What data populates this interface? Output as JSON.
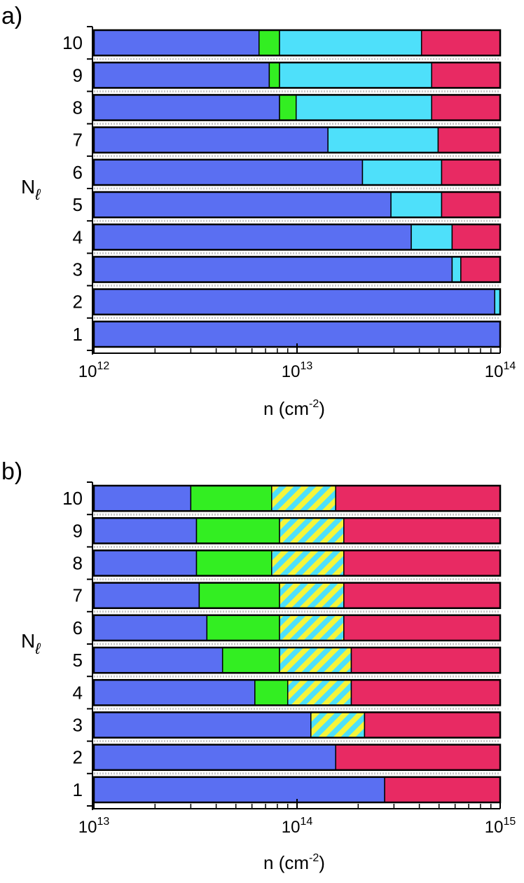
{
  "colors": {
    "blue": "#5a6ff2",
    "green": "#33ee22",
    "cyan": "#4ee0fa",
    "red": "#e82a63",
    "yellow": "#f5f53a",
    "bar_outline": "#000000",
    "separator": "#c8c8c8"
  },
  "chart_data": [
    {
      "panel": "a)",
      "type": "bar",
      "orientation": "horizontal-stacked",
      "xscale": "log",
      "xlim": [
        1000000000000.0,
        100000000000000.0
      ],
      "ylabel": "N",
      "ylabel_sub": "ℓ",
      "xlabel": "n  (cm",
      "xlabel_sup": "-2",
      "xlabel_end": ")",
      "xticks": [
        {
          "base": "10",
          "exp": "12",
          "value": 1000000000000.0
        },
        {
          "base": "10",
          "exp": "13",
          "value": 10000000000000.0
        },
        {
          "base": "10",
          "exp": "14",
          "value": 100000000000000.0
        }
      ],
      "rows": [
        {
          "label": "10",
          "segments": [
            {
              "color": "blue",
              "end": 6500000000000.0
            },
            {
              "color": "green",
              "end": 8200000000000.0
            },
            {
              "color": "cyan",
              "end": 41000000000000.0
            },
            {
              "color": "red",
              "end": 100000000000000.0
            }
          ]
        },
        {
          "label": "9",
          "segments": [
            {
              "color": "blue",
              "end": 7300000000000.0
            },
            {
              "color": "green",
              "end": 8200000000000.0
            },
            {
              "color": "cyan",
              "end": 46000000000000.0
            },
            {
              "color": "red",
              "end": 100000000000000.0
            }
          ]
        },
        {
          "label": "8",
          "segments": [
            {
              "color": "blue",
              "end": 8200000000000.0
            },
            {
              "color": "green",
              "end": 9900000000000.0
            },
            {
              "color": "cyan",
              "end": 46000000000000.0
            },
            {
              "color": "red",
              "end": 100000000000000.0
            }
          ]
        },
        {
          "label": "7",
          "segments": [
            {
              "color": "blue",
              "end": 14200000000000.0
            },
            {
              "color": "cyan",
              "end": 49500000000000.0
            },
            {
              "color": "red",
              "end": 100000000000000.0
            }
          ]
        },
        {
          "label": "6",
          "segments": [
            {
              "color": "blue",
              "end": 21000000000000.0
            },
            {
              "color": "cyan",
              "end": 51500000000000.0
            },
            {
              "color": "red",
              "end": 100000000000000.0
            }
          ]
        },
        {
          "label": "5",
          "segments": [
            {
              "color": "blue",
              "end": 29000000000000.0
            },
            {
              "color": "cyan",
              "end": 51500000000000.0
            },
            {
              "color": "red",
              "end": 100000000000000.0
            }
          ]
        },
        {
          "label": "4",
          "segments": [
            {
              "color": "blue",
              "end": 36500000000000.0
            },
            {
              "color": "cyan",
              "end": 58000000000000.0
            },
            {
              "color": "red",
              "end": 100000000000000.0
            }
          ]
        },
        {
          "label": "3",
          "segments": [
            {
              "color": "blue",
              "end": 58000000000000.0
            },
            {
              "color": "cyan",
              "end": 64000000000000.0
            },
            {
              "color": "red",
              "end": 100000000000000.0
            }
          ]
        },
        {
          "label": "2",
          "segments": [
            {
              "color": "blue",
              "end": 94000000000000.0
            },
            {
              "color": "cyan",
              "end": 100000000000000.0
            }
          ]
        },
        {
          "label": "1",
          "segments": [
            {
              "color": "blue",
              "end": 100000000000000.0
            }
          ]
        }
      ]
    },
    {
      "panel": "b)",
      "type": "bar",
      "orientation": "horizontal-stacked",
      "xscale": "log",
      "xlim": [
        10000000000000.0,
        1000000000000000.0
      ],
      "ylabel": "N",
      "ylabel_sub": "ℓ",
      "xlabel": "n  (cm",
      "xlabel_sup": "-2",
      "xlabel_end": ")",
      "xticks": [
        {
          "base": "10",
          "exp": "13",
          "value": 10000000000000.0
        },
        {
          "base": "10",
          "exp": "14",
          "value": 100000000000000.0
        },
        {
          "base": "10",
          "exp": "15",
          "value": 1000000000000000.0
        }
      ],
      "rows": [
        {
          "label": "10",
          "segments": [
            {
              "color": "blue",
              "end": 30000000000000.0
            },
            {
              "color": "green",
              "end": 75000000000000.0
            },
            {
              "color": "hatch",
              "end": 155000000000000.0
            },
            {
              "color": "red",
              "end": 1000000000000000.0
            }
          ]
        },
        {
          "label": "9",
          "segments": [
            {
              "color": "blue",
              "end": 32000000000000.0
            },
            {
              "color": "green",
              "end": 82000000000000.0
            },
            {
              "color": "hatch",
              "end": 170000000000000.0
            },
            {
              "color": "red",
              "end": 1000000000000000.0
            }
          ]
        },
        {
          "label": "8",
          "segments": [
            {
              "color": "blue",
              "end": 32000000000000.0
            },
            {
              "color": "green",
              "end": 75000000000000.0
            },
            {
              "color": "hatch",
              "end": 170000000000000.0
            },
            {
              "color": "red",
              "end": 1000000000000000.0
            }
          ]
        },
        {
          "label": "7",
          "segments": [
            {
              "color": "blue",
              "end": 33000000000000.0
            },
            {
              "color": "green",
              "end": 82000000000000.0
            },
            {
              "color": "hatch",
              "end": 170000000000000.0
            },
            {
              "color": "red",
              "end": 1000000000000000.0
            }
          ]
        },
        {
          "label": "6",
          "segments": [
            {
              "color": "blue",
              "end": 36000000000000.0
            },
            {
              "color": "green",
              "end": 82000000000000.0
            },
            {
              "color": "hatch",
              "end": 170000000000000.0
            },
            {
              "color": "red",
              "end": 1000000000000000.0
            }
          ]
        },
        {
          "label": "5",
          "segments": [
            {
              "color": "blue",
              "end": 43000000000000.0
            },
            {
              "color": "green",
              "end": 82000000000000.0
            },
            {
              "color": "hatch",
              "end": 185000000000000.0
            },
            {
              "color": "red",
              "end": 1000000000000000.0
            }
          ]
        },
        {
          "label": "4",
          "segments": [
            {
              "color": "blue",
              "end": 62000000000000.0
            },
            {
              "color": "green",
              "end": 90000000000000.0
            },
            {
              "color": "hatch",
              "end": 185000000000000.0
            },
            {
              "color": "red",
              "end": 1000000000000000.0
            }
          ]
        },
        {
          "label": "3",
          "segments": [
            {
              "color": "blue",
              "end": 117000000000000.0
            },
            {
              "color": "hatch",
              "end": 215000000000000.0
            },
            {
              "color": "red",
              "end": 1000000000000000.0
            }
          ]
        },
        {
          "label": "2",
          "segments": [
            {
              "color": "blue",
              "end": 155000000000000.0
            },
            {
              "color": "red",
              "end": 1000000000000000.0
            }
          ]
        },
        {
          "label": "1",
          "segments": [
            {
              "color": "blue",
              "end": 270000000000000.0
            },
            {
              "color": "red",
              "end": 1000000000000000.0
            }
          ]
        }
      ]
    }
  ]
}
